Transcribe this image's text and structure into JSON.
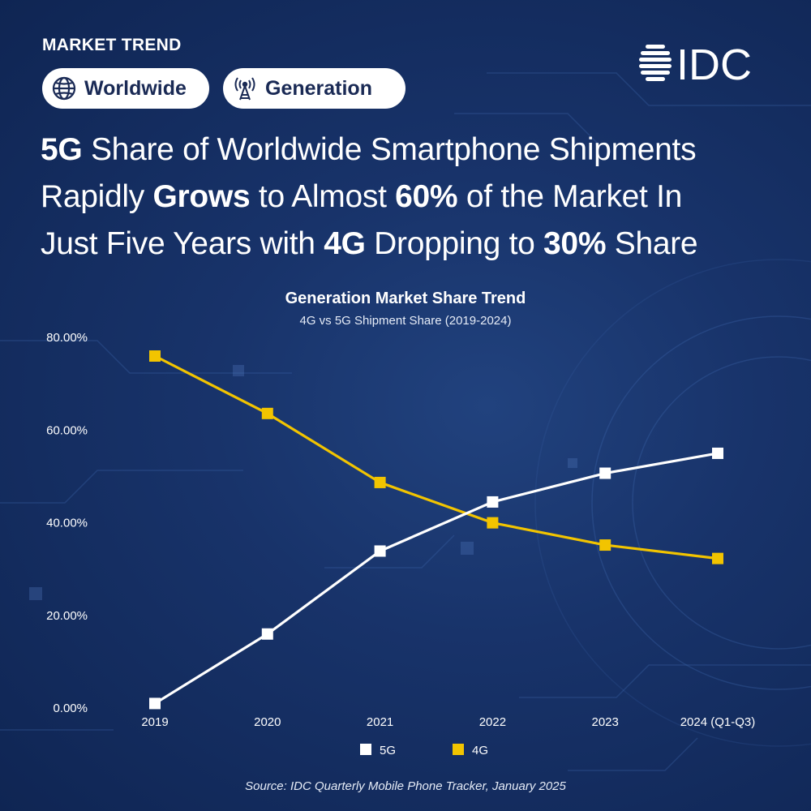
{
  "header": {
    "kicker": "MARKET TREND",
    "tags": [
      {
        "label": "Worldwide",
        "icon": "globe-icon"
      },
      {
        "label": "Generation",
        "icon": "antenna-icon"
      }
    ],
    "logo_text": "IDC"
  },
  "headline": {
    "line1": [
      {
        "t": "5G",
        "b": true
      },
      {
        "t": " Share of Worldwide Smartphone Shipments",
        "b": false
      }
    ],
    "line2": [
      {
        "t": "Rapidly ",
        "b": false
      },
      {
        "t": "Grows",
        "b": true
      },
      {
        "t": " to Almost ",
        "b": false
      },
      {
        "t": "60%",
        "b": true
      },
      {
        "t": " of the Market In",
        "b": false
      }
    ],
    "line3": [
      {
        "t": "Just Five Years with ",
        "b": false
      },
      {
        "t": "4G",
        "b": true
      },
      {
        "t": " Dropping to ",
        "b": false
      },
      {
        "t": "30%",
        "b": true
      },
      {
        "t": " Share",
        "b": false
      }
    ]
  },
  "chart_data": {
    "type": "line",
    "title": "Generation Market Share Trend",
    "subtitle": "4G vs 5G Shipment Share (2019-2024)",
    "categories": [
      "2019",
      "2020",
      "2021",
      "2022",
      "2023",
      "2024 (Q1-Q3)"
    ],
    "ylim": [
      0,
      80
    ],
    "yticks": [
      0,
      20,
      40,
      60,
      80
    ],
    "ytick_labels": [
      "0.00%",
      "20.00%",
      "40.00%",
      "60.00%",
      "80.00%"
    ],
    "grid": false,
    "legend": "bottom-center",
    "series": [
      {
        "name": "5G",
        "color": "#ffffff",
        "values": [
          0.8,
          15.8,
          33.7,
          44.3,
          50.5,
          54.8
        ]
      },
      {
        "name": "4G",
        "color": "#f2c400",
        "values": [
          75.8,
          63.4,
          48.5,
          39.8,
          35.0,
          32.1
        ]
      }
    ]
  },
  "footer": {
    "source": "Source: IDC Quarterly Mobile Phone Tracker, January 2025"
  }
}
